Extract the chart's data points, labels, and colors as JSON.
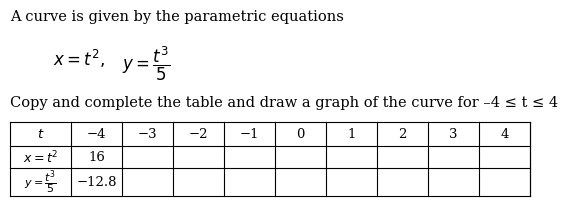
{
  "title": "A curve is given by the parametric equations",
  "subtitle": "Copy and complete the table and draw a graph of the curve for –4 ≤ t ≤ 4",
  "t_values": [
    "−4",
    "−3",
    "−2",
    "−1",
    "0",
    "1",
    "2",
    "3",
    "4"
  ],
  "x_values": [
    "16",
    "",
    "",
    "",
    "",
    "",
    "",
    "",
    ""
  ],
  "y_values": [
    "−12.8",
    "",
    "",
    "",
    "",
    "",
    "",
    "",
    ""
  ],
  "bg_color": "#ffffff",
  "text_color": "#000000",
  "title_fontsize": 10.5,
  "eq_fontsize": 12,
  "subtitle_fontsize": 10.5,
  "table_fontsize": 9.5
}
